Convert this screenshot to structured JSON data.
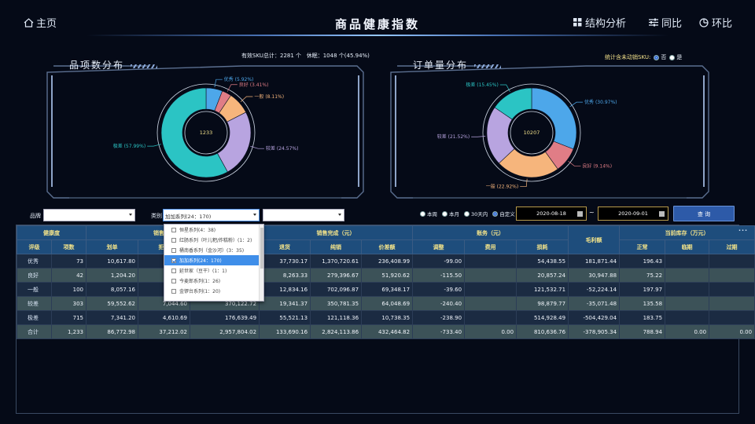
{
  "header": {
    "home_label": "主页",
    "title": "商品健康指数",
    "nav_structure": "结构分析",
    "nav_yoy": "同比",
    "nav_mom": "环比"
  },
  "summary": {
    "sku_label": "有效SKU总计：",
    "sku_value": "2281 个",
    "dormant_label": "休眠：",
    "dormant_value": "1048 个(45.94%)"
  },
  "stat_toggle": {
    "label": "统计含未动销SKU:",
    "no": "否",
    "yes": "是",
    "selected": "no"
  },
  "colors": {
    "excellent": "#4da7ea",
    "good": "#e07d86",
    "average": "#f6b57c",
    "poor": "#b8a4e0",
    "very_poor": "#2bc4c4"
  },
  "left_panel": {
    "title": "品项数分布"
  },
  "right_panel": {
    "title": "订单量分布"
  },
  "chart_data": [
    {
      "type": "pie",
      "title": "品项数分布",
      "center_value": "1233",
      "slices": [
        {
          "name": "优秀",
          "label": "优秀 (5.92%)",
          "value": 5.92
        },
        {
          "name": "良好",
          "label": "良好 (3.41%)",
          "value": 3.41
        },
        {
          "name": "一般",
          "label": "一般 (8.11%)",
          "value": 8.11
        },
        {
          "name": "较差",
          "label": "较差 (24.57%)",
          "value": 24.57
        },
        {
          "name": "极差",
          "label": "极差 (57.99%)",
          "value": 57.99
        }
      ]
    },
    {
      "type": "pie",
      "title": "订单量分布",
      "center_value": "10207",
      "slices": [
        {
          "name": "优秀",
          "label": "优秀 (30.97%)",
          "value": 30.97
        },
        {
          "name": "良好",
          "label": "良好 (9.14%)",
          "value": 9.14
        },
        {
          "name": "一般",
          "label": "一般 (22.92%)",
          "value": 22.92
        },
        {
          "name": "较差",
          "label": "较差 (21.52%)",
          "value": 21.52
        },
        {
          "name": "极差",
          "label": "极差 (15.45%)",
          "value": 15.45
        }
      ]
    }
  ],
  "filters": {
    "brand_label": "品牌",
    "brand_value": "",
    "category_label": "类别",
    "category_value": "加加系列(24：170)",
    "third_value": "",
    "periods": [
      "本周",
      "本月",
      "30天内",
      "自定义"
    ],
    "period_selected": "自定义",
    "date_from": "2020-08-18",
    "date_to": "2020-09-01",
    "tilde": "~",
    "query_label": "查 询"
  },
  "dropdown": {
    "items": [
      {
        "label": "恒星系列(4：38)",
        "selected": false
      },
      {
        "label": "红肠系列（叶儿粑/炸糕粉）(1：2)",
        "selected": false
      },
      {
        "label": "桶南香系列（金沙河）(3：35)",
        "selected": false
      },
      {
        "label": "加加系列(24：170)",
        "selected": true
      },
      {
        "label": "延世家（豆干）(1：1)",
        "selected": false
      },
      {
        "label": "今麦郎系列(1：26)",
        "selected": false
      },
      {
        "label": "金锣台系列(1：20)",
        "selected": false
      }
    ]
  },
  "table": {
    "groups": {
      "health": "健康度",
      "sales_out": "销售发出（元）",
      "sales_done": "销售完成（元）",
      "accounts": "账务（元）",
      "gross": "毛利额",
      "stock": "当前库存（万元）"
    },
    "subheaders": [
      "评级",
      "项数",
      "划单",
      "拒收",
      "应收",
      "退货",
      "纯销",
      "价差额",
      "调整",
      "费用",
      "损耗",
      "正常",
      "临期",
      "过期"
    ],
    "more": "···",
    "rows": [
      [
        "优秀",
        "73",
        "10,617.80",
        "",
        "",
        "37,730.17",
        "1,370,720.61",
        "236,408.99",
        "-99.00",
        "",
        "54,438.55",
        "181,871.44",
        "196.43",
        "",
        ""
      ],
      [
        "良好",
        "42",
        "1,204.20",
        "",
        "",
        "8,263.33",
        "279,396.67",
        "51,920.62",
        "-115.50",
        "",
        "20,857.24",
        "30,947.88",
        "75.22",
        "",
        ""
      ],
      [
        "一般",
        "100",
        "8,057.16",
        "",
        "",
        "12,834.16",
        "702,096.87",
        "69,348.17",
        "-39.60",
        "",
        "121,532.71",
        "-52,224.14",
        "197.97",
        "",
        ""
      ],
      [
        "较差",
        "303",
        "59,552.62",
        "7,044.60",
        "370,122.72",
        "19,341.37",
        "350,781.35",
        "64,048.69",
        "-240.40",
        "",
        "98,879.77",
        "-35,071.48",
        "135.58",
        "",
        ""
      ],
      [
        "极差",
        "715",
        "7,341.20",
        "4,610.69",
        "176,639.49",
        "55,521.13",
        "121,118.36",
        "10,738.35",
        "-238.90",
        "",
        "514,928.49",
        "-504,429.04",
        "183.75",
        "",
        ""
      ],
      [
        "合计",
        "1,233",
        "86,772.98",
        "37,212.02",
        "2,957,804.02",
        "133,690.16",
        "2,824,113.86",
        "432,464.82",
        "-733.40",
        "0.00",
        "810,636.76",
        "-378,905.34",
        "788.94",
        "0.00",
        "0.00"
      ]
    ]
  }
}
